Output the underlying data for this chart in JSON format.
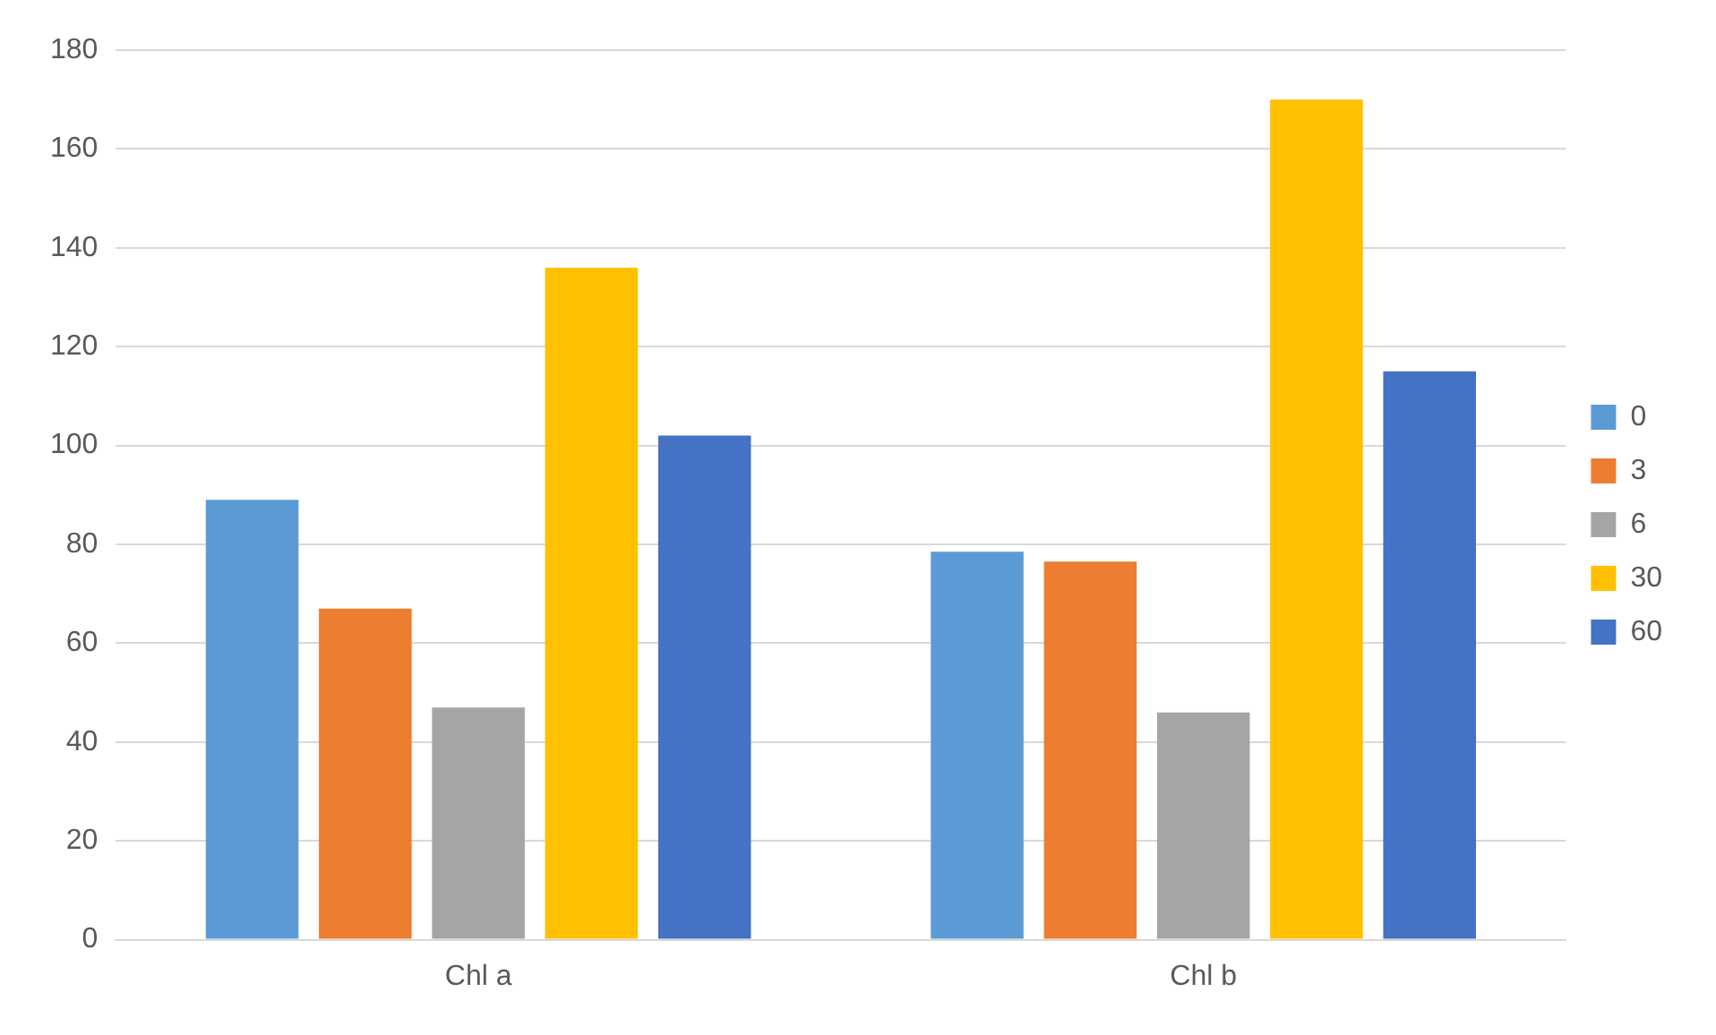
{
  "chart_data": {
    "type": "bar",
    "categories": [
      "Chl a",
      "Chl b"
    ],
    "series": [
      {
        "name": "0",
        "color": "#5b9bd5",
        "values": [
          89,
          78.5
        ]
      },
      {
        "name": "3",
        "color": "#ed7d31",
        "values": [
          67,
          76.5
        ]
      },
      {
        "name": "6",
        "color": "#a5a5a5",
        "values": [
          47,
          46
        ]
      },
      {
        "name": "30",
        "color": "#ffc000",
        "values": [
          136,
          170
        ]
      },
      {
        "name": "60",
        "color": "#4472c4",
        "values": [
          102,
          115
        ]
      }
    ],
    "ylim": [
      0,
      180
    ],
    "yticks": [
      0,
      20,
      40,
      60,
      80,
      100,
      120,
      140,
      160,
      180
    ],
    "grid": "y",
    "legend": "right"
  }
}
